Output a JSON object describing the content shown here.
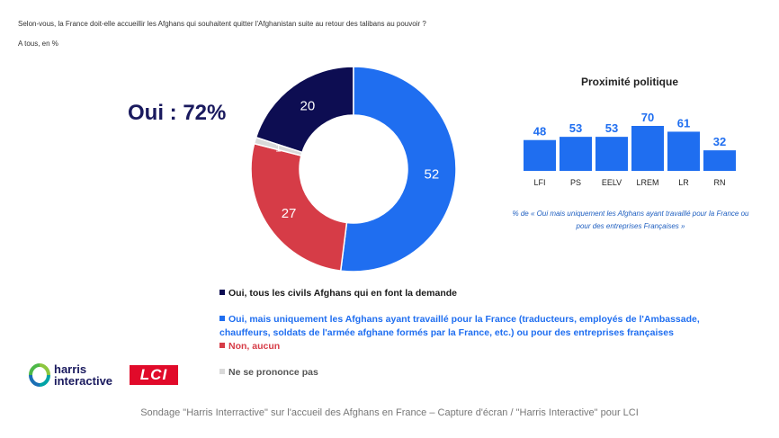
{
  "question": "Selon-vous, la France doit-elle accueillir les Afghans qui souhaitent quitter l'Afghanistan suite au retour des talibans au pouvoir ?",
  "base": "A tous, en %",
  "oui_total": "Oui : 72%",
  "chart_data": [
    {
      "type": "pie",
      "categories": [
        "Oui, tous les civils Afghans qui en font la demande",
        "Oui, mais uniquement les Afghans ayant travaillé pour la France (traducteurs, employés de l'Ambassade, chauffeurs, soldats de l'armée afghane formés par la France, etc.) ou pour des entreprises françaises",
        "Non, aucun",
        "Ne se prononce pas"
      ],
      "values": [
        20,
        52,
        27,
        1
      ],
      "colors": [
        "#0d0d52",
        "#1f6ef0",
        "#d63c47",
        "#d9d9d9"
      ],
      "donut": true
    },
    {
      "type": "bar",
      "title": "Proximité politique",
      "categories": [
        "LFI",
        "PS",
        "EELV",
        "LREM",
        "LR",
        "RN"
      ],
      "values": [
        48,
        53,
        53,
        70,
        61,
        32
      ],
      "color": "#1f6ef0",
      "note": "% de « Oui mais uniquement les Afghans ayant travaillé pour la France ou pour des entreprises Françaises »"
    }
  ],
  "legend": [
    {
      "text": "Oui, tous les civils Afghans qui en font la demande",
      "color": "#0d0d52"
    },
    {
      "text": "Oui, mais uniquement les Afghans ayant travaillé pour la France (traducteurs, employés de l'Ambassade,",
      "text2": "chauffeurs, soldats de l'armée afghane formés par la France, etc.) ou pour des entreprises françaises",
      "color": "#1f6ef0"
    },
    {
      "text": "Non, aucun",
      "color": "#d63c47"
    },
    {
      "text": "Ne se prononce pas",
      "color": "#d9d9d9"
    }
  ],
  "logos": {
    "harris_line1": "harris",
    "harris_line2": "interactive",
    "lci": "LCI"
  },
  "caption": "Sondage \"Harris Interractive\" sur l'accueil des Afghans en France – Capture d'écran / \"Harris Interactive\" pour LCI"
}
